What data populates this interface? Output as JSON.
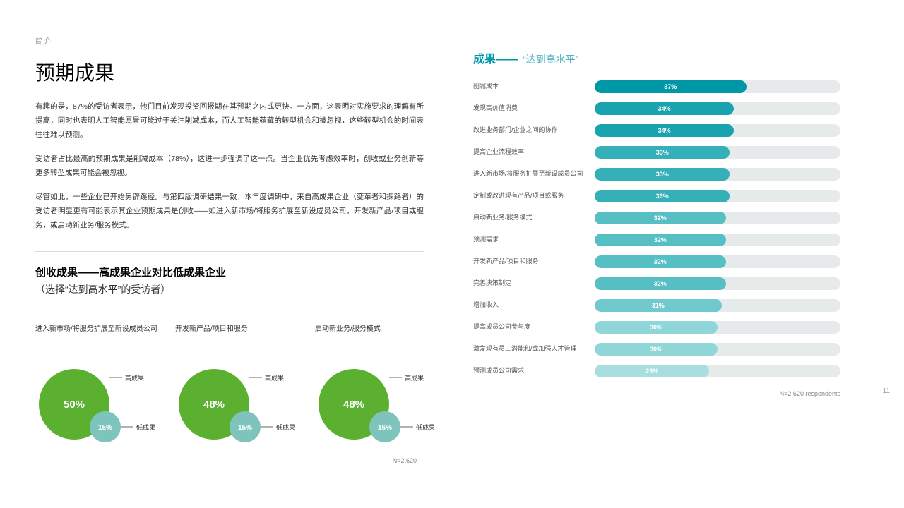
{
  "left": {
    "pre_title": "简介",
    "title": "预期成果",
    "paragraphs": [
      "有趣的是，87%的受访者表示，他们目前发现投资回报期在其预期之内或更快。一方面，这表明对实施要求的理解有所提高，同时也表明人工智能愿景可能过于关注削减成本，而人工智能蕴藏的转型机会和被忽视，这些转型机会的时间表往往难以预测。",
      "受访者占比最高的预期成果是削减成本（78%），这进一步强调了这一点。当企业优先考虑效率时，创收或业务创新等更多转型成果可能会被忽视。",
      "尽管如此，一些企业已开始另辟蹊径。与第四版调研结果一致，本年度调研中，来自高成果企业（变革者和探路者）的受访者明显更有可能表示其企业预期成果是创收——如进入新市场/将服务扩展至新设成员公司，开发新产品/项目或服务，或启动新业务/服务模式。"
    ],
    "subsection_title": "创收成果——高成果企业对比低成果企业",
    "subsection_sub": "（选择“达到高水平”的受访者）",
    "legend_high": "高成果",
    "legend_low": "低成果",
    "bubbles": [
      {
        "label": "进入新市场/将服务扩展至新设成员公司",
        "high": 50,
        "low": 15
      },
      {
        "label": "开发新产品/项目和服务",
        "high": 48,
        "low": 15
      },
      {
        "label": "启动新业务/服务模式",
        "high": 48,
        "low": 16
      }
    ],
    "bubble_colors": {
      "high": "#5bb030",
      "low": "#7fc4bc",
      "text": "#ffffff",
      "leader_color": "#333333"
    },
    "bubble_radii": {
      "high": 50,
      "low": 22
    },
    "left_footnote": "N=2,620"
  },
  "right": {
    "title_a": "成果——",
    "title_b": "“达到高水平”",
    "title_a_color": "#0097a7",
    "title_b_color": "#4fb3bf",
    "bars": [
      {
        "label": "削减成本",
        "value": 37
      },
      {
        "label": "发现高价值消费",
        "value": 34
      },
      {
        "label": "改进业务部门/企业之间的协作",
        "value": 34
      },
      {
        "label": "提高企业流程效率",
        "value": 33
      },
      {
        "label": "进入新市场/将服务扩展至新设成员公司",
        "value": 33
      },
      {
        "label": "定制或改进现有产品/项目或服务",
        "value": 33
      },
      {
        "label": "启动新业务/服务模式",
        "value": 32
      },
      {
        "label": "预测需求",
        "value": 32
      },
      {
        "label": "开发新产品/项目和服务",
        "value": 32
      },
      {
        "label": "完善决策制定",
        "value": 32
      },
      {
        "label": "增加收入",
        "value": 31
      },
      {
        "label": "提高成员公司参与度",
        "value": 30
      },
      {
        "label": "激发现有员工潜能和/或加强人才管理",
        "value": 30
      },
      {
        "label": "预测成员公司需求",
        "value": 28
      }
    ],
    "bar_style": {
      "track_color": "#e7eaeb",
      "max_value": 60,
      "color_stops": [
        {
          "at": 37,
          "color": "#0097a7"
        },
        {
          "at": 34,
          "color": "#19a3ae"
        },
        {
          "at": 33,
          "color": "#35b0b8"
        },
        {
          "at": 32,
          "color": "#55bfc4"
        },
        {
          "at": 31,
          "color": "#6fc9cd"
        },
        {
          "at": 30,
          "color": "#8fd6d8"
        },
        {
          "at": 28,
          "color": "#a8dedf"
        }
      ]
    },
    "footnote": "N=2,620 respondents"
  },
  "page_number": "11"
}
